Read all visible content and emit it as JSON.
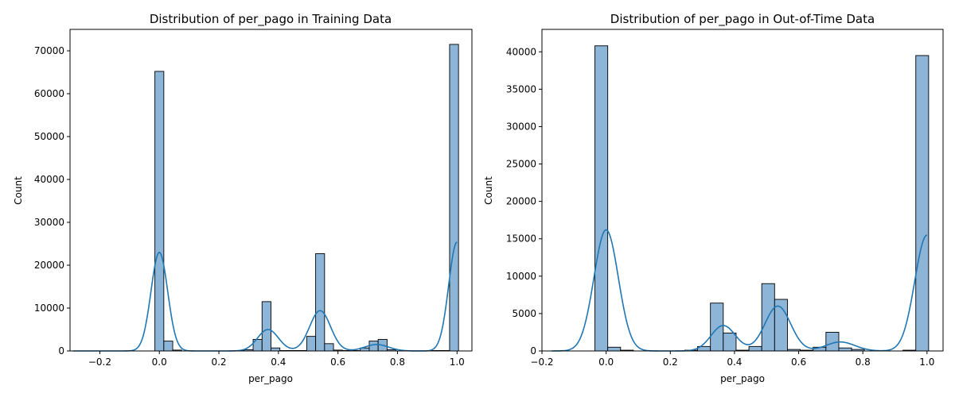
{
  "colors": {
    "bar_fill": "#8db5d8",
    "bar_edge": "#000000",
    "kde_line": "#1f77b4"
  },
  "chart_data": [
    {
      "type": "bar",
      "title": "Distribution of per_pago in Training Data",
      "xlabel": "per_pago",
      "ylabel": "Count",
      "xlim": [
        -0.3,
        1.05
      ],
      "ylim": [
        0,
        75000
      ],
      "xticks": [
        -0.2,
        0.0,
        0.2,
        0.4,
        0.6,
        0.8,
        1.0
      ],
      "xtick_labels": [
        "−0.2",
        "0.0",
        "0.2",
        "0.4",
        "0.6",
        "0.8",
        "1.0"
      ],
      "yticks": [
        0,
        10000,
        20000,
        30000,
        40000,
        50000,
        60000,
        70000
      ],
      "yticks_labels": [
        "0",
        "10000",
        "20000",
        "30000",
        "40000",
        "50000",
        "60000",
        "70000"
      ],
      "grid": false,
      "bins": [
        {
          "x0": -0.015,
          "x1": 0.015,
          "value": 65200
        },
        {
          "x0": 0.015,
          "x1": 0.045,
          "value": 2300
        },
        {
          "x0": 0.045,
          "x1": 0.075,
          "value": 200
        },
        {
          "x0": 0.255,
          "x1": 0.285,
          "value": 100
        },
        {
          "x0": 0.285,
          "x1": 0.315,
          "value": 300
        },
        {
          "x0": 0.315,
          "x1": 0.345,
          "value": 2700
        },
        {
          "x0": 0.345,
          "x1": 0.375,
          "value": 11500
        },
        {
          "x0": 0.375,
          "x1": 0.405,
          "value": 700
        },
        {
          "x0": 0.405,
          "x1": 0.435,
          "value": 100
        },
        {
          "x0": 0.435,
          "x1": 0.465,
          "value": 100
        },
        {
          "x0": 0.465,
          "x1": 0.495,
          "value": 100
        },
        {
          "x0": 0.495,
          "x1": 0.525,
          "value": 3400
        },
        {
          "x0": 0.525,
          "x1": 0.555,
          "value": 22700
        },
        {
          "x0": 0.555,
          "x1": 0.585,
          "value": 1700
        },
        {
          "x0": 0.585,
          "x1": 0.615,
          "value": 200
        },
        {
          "x0": 0.615,
          "x1": 0.645,
          "value": 100
        },
        {
          "x0": 0.645,
          "x1": 0.675,
          "value": 100
        },
        {
          "x0": 0.675,
          "x1": 0.705,
          "value": 700
        },
        {
          "x0": 0.705,
          "x1": 0.735,
          "value": 2300
        },
        {
          "x0": 0.735,
          "x1": 0.765,
          "value": 2700
        },
        {
          "x0": 0.765,
          "x1": 0.795,
          "value": 300
        },
        {
          "x0": 0.915,
          "x1": 0.945,
          "value": 100
        },
        {
          "x0": 0.945,
          "x1": 0.975,
          "value": 100
        },
        {
          "x0": 0.975,
          "x1": 1.005,
          "value": 71500
        }
      ],
      "kde": {
        "x_range": [
          -0.29,
          1.0
        ],
        "components": [
          {
            "mean": 0.0,
            "sd": 0.028,
            "peak": 23000
          },
          {
            "mean": 0.365,
            "sd": 0.035,
            "peak": 5000
          },
          {
            "mean": 0.54,
            "sd": 0.035,
            "peak": 9400
          },
          {
            "mean": 0.73,
            "sd": 0.04,
            "peak": 1500
          },
          {
            "mean": 1.0,
            "sd": 0.028,
            "peak": 25400
          }
        ]
      }
    },
    {
      "type": "bar",
      "title": "Distribution of per_pago in Out-of-Time Data",
      "xlabel": "per_pago",
      "ylabel": "Count",
      "xlim": [
        -0.2,
        1.05
      ],
      "ylim": [
        0,
        43000
      ],
      "xticks": [
        -0.2,
        0.0,
        0.2,
        0.4,
        0.6,
        0.8,
        1.0
      ],
      "xtick_labels": [
        "−0.2",
        "0.0",
        "0.2",
        "0.4",
        "0.6",
        "0.8",
        "1.0"
      ],
      "yticks": [
        0,
        5000,
        10000,
        15000,
        20000,
        25000,
        30000,
        35000,
        40000
      ],
      "yticks_labels": [
        "0",
        "5000",
        "10000",
        "15000",
        "20000",
        "25000",
        "30000",
        "35000",
        "40000"
      ],
      "grid": false,
      "bins": [
        {
          "x0": -0.035,
          "x1": 0.005,
          "value": 40800
        },
        {
          "x0": 0.005,
          "x1": 0.045,
          "value": 500
        },
        {
          "x0": 0.045,
          "x1": 0.085,
          "value": 100
        },
        {
          "x0": 0.245,
          "x1": 0.285,
          "value": 100
        },
        {
          "x0": 0.285,
          "x1": 0.325,
          "value": 600
        },
        {
          "x0": 0.325,
          "x1": 0.365,
          "value": 6400
        },
        {
          "x0": 0.365,
          "x1": 0.405,
          "value": 2400
        },
        {
          "x0": 0.405,
          "x1": 0.445,
          "value": 100
        },
        {
          "x0": 0.445,
          "x1": 0.485,
          "value": 600
        },
        {
          "x0": 0.485,
          "x1": 0.525,
          "value": 9000
        },
        {
          "x0": 0.525,
          "x1": 0.565,
          "value": 6900
        },
        {
          "x0": 0.565,
          "x1": 0.605,
          "value": 200
        },
        {
          "x0": 0.605,
          "x1": 0.645,
          "value": 100
        },
        {
          "x0": 0.645,
          "x1": 0.685,
          "value": 500
        },
        {
          "x0": 0.685,
          "x1": 0.725,
          "value": 2500
        },
        {
          "x0": 0.725,
          "x1": 0.765,
          "value": 400
        },
        {
          "x0": 0.765,
          "x1": 0.805,
          "value": 200
        },
        {
          "x0": 0.925,
          "x1": 0.965,
          "value": 100
        },
        {
          "x0": 0.965,
          "x1": 1.005,
          "value": 39500
        }
      ],
      "kde": {
        "x_range": [
          -0.17,
          1.0
        ],
        "components": [
          {
            "mean": 0.0,
            "sd": 0.038,
            "peak": 16200
          },
          {
            "mean": 0.365,
            "sd": 0.038,
            "peak": 3400
          },
          {
            "mean": 0.535,
            "sd": 0.04,
            "peak": 6000
          },
          {
            "mean": 0.73,
            "sd": 0.045,
            "peak": 1200
          },
          {
            "mean": 1.0,
            "sd": 0.038,
            "peak": 15500
          }
        ]
      }
    }
  ]
}
